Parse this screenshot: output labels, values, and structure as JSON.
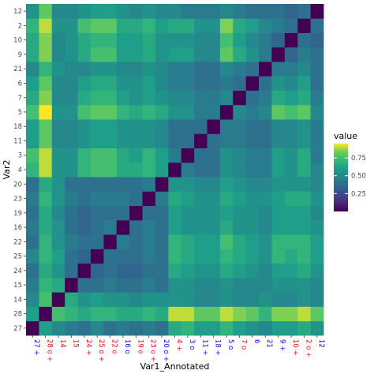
{
  "chart_data": {
    "type": "heatmap",
    "xlabel": "Var1_Annotated",
    "ylabel": "Var2",
    "x_labels": [
      "27 +",
      "28 o +",
      "14",
      "15",
      "24 +",
      "25 o +",
      "22 o",
      "16 o",
      "19 o",
      "23 o +",
      "20 o +",
      "4 +",
      "3 o",
      "11 +",
      "18 +",
      "5 o",
      "7 o",
      "6",
      "21",
      "9 +",
      "10 +",
      "2 o +",
      "12"
    ],
    "x_label_colors": [
      "#0000ff",
      "#ff0000",
      "#ff0000",
      "#ff0000",
      "#ff0000",
      "#ff0000",
      "#ff0000",
      "#0000ff",
      "#ff0000",
      "#ff0000",
      "#0000ff",
      "#ff0000",
      "#0000ff",
      "#0000ff",
      "#0000ff",
      "#0000ff",
      "#ff0000",
      "#0000ff",
      "#0000ff",
      "#0000ff",
      "#ff0000",
      "#ff0000",
      "#0000ff"
    ],
    "y_labels": [
      "27",
      "28",
      "14",
      "15",
      "24",
      "25",
      "22",
      "16",
      "19",
      "23",
      "20",
      "4",
      "3",
      "11",
      "18",
      "5",
      "7",
      "6",
      "21",
      "9",
      "10",
      "2",
      "12"
    ],
    "legend": {
      "title": "value",
      "ticks": [
        0.25,
        0.5,
        0.75
      ],
      "tick_labels": [
        "0.25",
        "0.50",
        "0.75"
      ],
      "range": [
        0,
        0.95
      ]
    },
    "colormap": "viridis",
    "grid": false,
    "legend_position": "right",
    "values": [
      [
        0.0,
        0.6,
        0.5,
        0.45,
        0.4,
        0.5,
        0.4,
        0.45,
        0.4,
        0.45,
        0.4,
        0.65,
        0.7,
        0.6,
        0.6,
        0.7,
        0.6,
        0.55,
        0.5,
        0.6,
        0.6,
        0.65,
        0.55
      ],
      [
        0.6,
        0.0,
        0.75,
        0.7,
        0.65,
        0.7,
        0.7,
        0.65,
        0.65,
        0.7,
        0.65,
        0.9,
        0.9,
        0.8,
        0.8,
        0.9,
        0.85,
        0.8,
        0.7,
        0.85,
        0.85,
        0.9,
        0.8
      ],
      [
        0.5,
        0.75,
        0.0,
        0.65,
        0.55,
        0.6,
        0.55,
        0.55,
        0.5,
        0.55,
        0.55,
        0.55,
        0.55,
        0.5,
        0.5,
        0.55,
        0.5,
        0.5,
        0.55,
        0.5,
        0.5,
        0.55,
        0.5
      ],
      [
        0.45,
        0.7,
        0.65,
        0.0,
        0.4,
        0.4,
        0.45,
        0.4,
        0.4,
        0.45,
        0.4,
        0.55,
        0.55,
        0.5,
        0.5,
        0.55,
        0.5,
        0.5,
        0.5,
        0.55,
        0.55,
        0.55,
        0.5
      ],
      [
        0.4,
        0.65,
        0.55,
        0.4,
        0.0,
        0.35,
        0.4,
        0.35,
        0.35,
        0.4,
        0.4,
        0.65,
        0.6,
        0.55,
        0.55,
        0.65,
        0.6,
        0.55,
        0.5,
        0.6,
        0.6,
        0.65,
        0.55
      ],
      [
        0.5,
        0.7,
        0.6,
        0.4,
        0.35,
        0.0,
        0.4,
        0.4,
        0.4,
        0.45,
        0.4,
        0.7,
        0.65,
        0.6,
        0.6,
        0.7,
        0.65,
        0.6,
        0.55,
        0.7,
        0.65,
        0.7,
        0.6
      ],
      [
        0.4,
        0.7,
        0.55,
        0.45,
        0.4,
        0.4,
        0.0,
        0.45,
        0.4,
        0.45,
        0.4,
        0.7,
        0.65,
        0.6,
        0.6,
        0.75,
        0.65,
        0.6,
        0.55,
        0.7,
        0.7,
        0.7,
        0.6
      ],
      [
        0.45,
        0.65,
        0.55,
        0.4,
        0.35,
        0.4,
        0.45,
        0.0,
        0.4,
        0.45,
        0.4,
        0.6,
        0.55,
        0.55,
        0.55,
        0.65,
        0.55,
        0.55,
        0.5,
        0.6,
        0.6,
        0.6,
        0.55
      ],
      [
        0.4,
        0.65,
        0.5,
        0.4,
        0.35,
        0.4,
        0.4,
        0.4,
        0.0,
        0.4,
        0.4,
        0.6,
        0.55,
        0.55,
        0.55,
        0.6,
        0.55,
        0.55,
        0.5,
        0.6,
        0.6,
        0.6,
        0.5
      ],
      [
        0.45,
        0.7,
        0.55,
        0.45,
        0.4,
        0.45,
        0.45,
        0.45,
        0.4,
        0.0,
        0.45,
        0.65,
        0.6,
        0.55,
        0.55,
        0.65,
        0.6,
        0.55,
        0.55,
        0.6,
        0.65,
        0.65,
        0.55
      ],
      [
        0.4,
        0.65,
        0.55,
        0.4,
        0.4,
        0.4,
        0.4,
        0.4,
        0.4,
        0.45,
        0.0,
        0.55,
        0.55,
        0.5,
        0.5,
        0.6,
        0.55,
        0.5,
        0.5,
        0.55,
        0.55,
        0.55,
        0.5
      ],
      [
        0.7,
        0.9,
        0.55,
        0.55,
        0.7,
        0.75,
        0.75,
        0.65,
        0.65,
        0.7,
        0.6,
        0.0,
        0.45,
        0.4,
        0.4,
        0.55,
        0.5,
        0.45,
        0.45,
        0.6,
        0.55,
        0.65,
        0.5
      ],
      [
        0.75,
        0.9,
        0.55,
        0.55,
        0.7,
        0.75,
        0.75,
        0.65,
        0.6,
        0.7,
        0.6,
        0.45,
        0.0,
        0.4,
        0.4,
        0.55,
        0.5,
        0.45,
        0.45,
        0.6,
        0.55,
        0.65,
        0.45
      ],
      [
        0.6,
        0.8,
        0.5,
        0.5,
        0.55,
        0.6,
        0.6,
        0.55,
        0.55,
        0.55,
        0.5,
        0.4,
        0.4,
        0.0,
        0.4,
        0.45,
        0.45,
        0.4,
        0.4,
        0.5,
        0.5,
        0.55,
        0.45
      ],
      [
        0.6,
        0.8,
        0.5,
        0.5,
        0.55,
        0.6,
        0.6,
        0.55,
        0.55,
        0.55,
        0.5,
        0.4,
        0.4,
        0.4,
        0.0,
        0.45,
        0.45,
        0.4,
        0.4,
        0.5,
        0.5,
        0.55,
        0.45
      ],
      [
        0.75,
        0.95,
        0.55,
        0.55,
        0.75,
        0.8,
        0.8,
        0.7,
        0.65,
        0.7,
        0.65,
        0.55,
        0.55,
        0.45,
        0.45,
        0.0,
        0.5,
        0.45,
        0.5,
        0.8,
        0.75,
        0.8,
        0.5
      ],
      [
        0.65,
        0.85,
        0.5,
        0.5,
        0.65,
        0.7,
        0.7,
        0.6,
        0.55,
        0.6,
        0.55,
        0.5,
        0.5,
        0.45,
        0.45,
        0.5,
        0.0,
        0.4,
        0.45,
        0.65,
        0.6,
        0.65,
        0.45
      ],
      [
        0.6,
        0.8,
        0.5,
        0.5,
        0.6,
        0.65,
        0.65,
        0.55,
        0.55,
        0.6,
        0.5,
        0.45,
        0.45,
        0.4,
        0.4,
        0.45,
        0.4,
        0.0,
        0.4,
        0.55,
        0.5,
        0.6,
        0.4
      ],
      [
        0.5,
        0.7,
        0.55,
        0.5,
        0.5,
        0.55,
        0.55,
        0.5,
        0.5,
        0.55,
        0.5,
        0.45,
        0.45,
        0.4,
        0.4,
        0.5,
        0.45,
        0.4,
        0.0,
        0.45,
        0.45,
        0.5,
        0.4
      ],
      [
        0.65,
        0.85,
        0.5,
        0.55,
        0.65,
        0.75,
        0.75,
        0.6,
        0.6,
        0.65,
        0.55,
        0.6,
        0.6,
        0.5,
        0.5,
        0.8,
        0.65,
        0.55,
        0.45,
        0.0,
        0.35,
        0.45,
        0.4
      ],
      [
        0.65,
        0.85,
        0.5,
        0.55,
        0.65,
        0.7,
        0.7,
        0.6,
        0.6,
        0.65,
        0.55,
        0.55,
        0.55,
        0.5,
        0.5,
        0.75,
        0.6,
        0.5,
        0.45,
        0.35,
        0.0,
        0.4,
        0.35
      ],
      [
        0.7,
        0.9,
        0.55,
        0.55,
        0.75,
        0.8,
        0.8,
        0.65,
        0.65,
        0.7,
        0.6,
        0.65,
        0.65,
        0.55,
        0.55,
        0.85,
        0.65,
        0.6,
        0.5,
        0.45,
        0.4,
        0.0,
        0.4
      ],
      [
        0.55,
        0.8,
        0.5,
        0.5,
        0.55,
        0.6,
        0.6,
        0.55,
        0.5,
        0.55,
        0.5,
        0.5,
        0.45,
        0.45,
        0.45,
        0.5,
        0.45,
        0.4,
        0.4,
        0.4,
        0.35,
        0.4,
        0.0
      ]
    ]
  }
}
